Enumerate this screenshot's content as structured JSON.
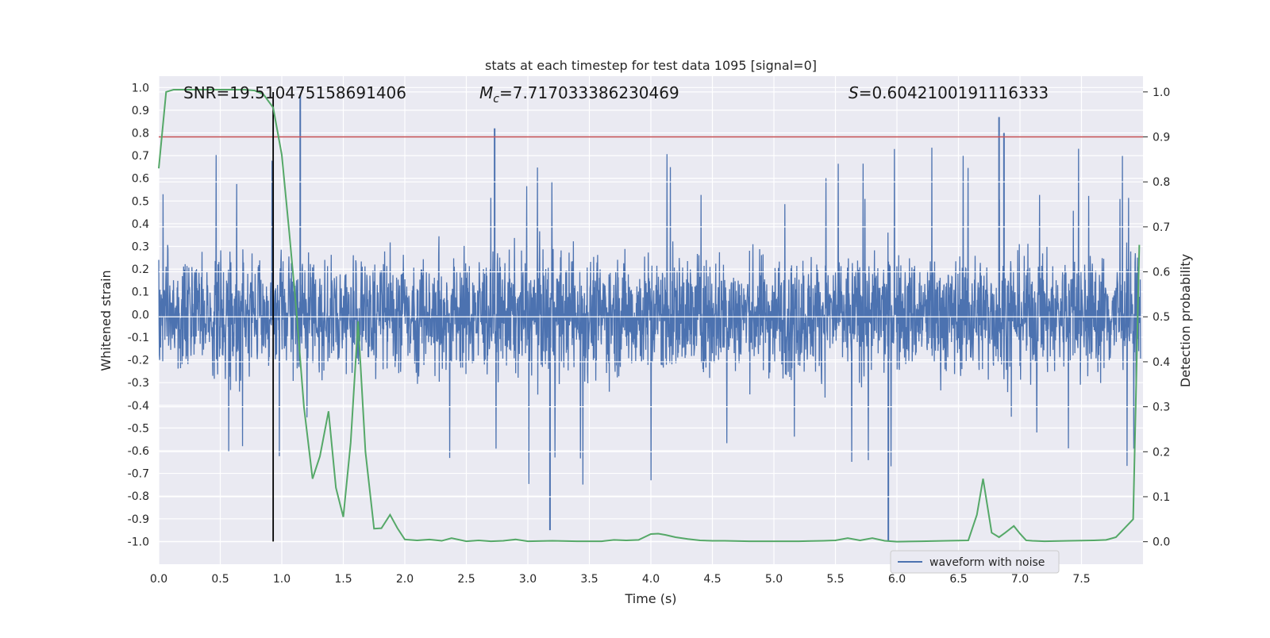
{
  "chart_data": {
    "type": "line",
    "title": "stats at each timestep for test data 1095 [signal=0]",
    "xlabel": "Time (s)",
    "ylabel": "Whitened strain",
    "ylabel_right": "Detection probability",
    "xlim": [
      0.0,
      8.0
    ],
    "ylim": [
      -1.1,
      1.05
    ],
    "ylim_right": [
      -0.05,
      1.035
    ],
    "x_ticks": [
      "0.0",
      "0.5",
      "1.0",
      "1.5",
      "2.0",
      "2.5",
      "3.0",
      "3.5",
      "4.0",
      "4.5",
      "5.0",
      "5.5",
      "6.0",
      "6.5",
      "7.0",
      "7.5"
    ],
    "y_ticks": [
      "1.0",
      "0.9",
      "0.8",
      "0.7",
      "0.6",
      "0.5",
      "0.4",
      "0.3",
      "0.2",
      "0.1",
      "0.0",
      "-0.1",
      "-0.2",
      "-0.3",
      "-0.4",
      "-0.5",
      "-0.6",
      "-0.7",
      "-0.8",
      "-0.9",
      "-1.0"
    ],
    "y_right_ticks": [
      "1.0",
      "0.9",
      "0.8",
      "0.7",
      "0.6",
      "0.5",
      "0.4",
      "0.3",
      "0.2",
      "0.1",
      "0.0"
    ],
    "grid": true,
    "legend_position": "bottom-right",
    "annotations": {
      "snr": "SNR=19.510475158691406",
      "mc_symbol": "M",
      "mc_subscript": "c",
      "mc_value": "=7.717033386230469",
      "s_symbol": "S",
      "s_value": "=0.6042100191116333"
    },
    "threshold": {
      "axis": "right",
      "value": 0.9,
      "color": "#c44e52"
    },
    "marker_line": {
      "x": 0.93,
      "y_from": -1.0,
      "y_to": 0.98,
      "color": "#000000"
    },
    "series": [
      {
        "name": "waveform with noise",
        "axis": "left",
        "color": "#4c72b0",
        "description": "dense noisy whitened strain samples spanning 0 to 8 s, mostly within about ±0.4 with spikes up to ~0.97 and down to ~-1.0",
        "envelope_typical": [
          -0.42,
          0.45
        ],
        "notable_spikes": [
          {
            "x": 1.15,
            "y": 0.97
          },
          {
            "x": 2.73,
            "y": 0.82
          },
          {
            "x": 3.18,
            "y": -0.95
          },
          {
            "x": 5.93,
            "y": -1.0
          },
          {
            "x": 6.83,
            "y": 0.87
          },
          {
            "x": 6.87,
            "y": 0.8
          }
        ]
      },
      {
        "axis": "right",
        "color": "#55a868",
        "x": [
          0.0,
          0.06,
          0.12,
          0.2,
          0.3,
          0.4,
          0.5,
          0.6,
          0.7,
          0.78,
          0.85,
          0.93,
          1.0,
          1.06,
          1.12,
          1.18,
          1.25,
          1.31,
          1.38,
          1.44,
          1.5,
          1.56,
          1.62,
          1.68,
          1.75,
          1.81,
          1.88,
          1.94,
          2.0,
          2.1,
          2.2,
          2.3,
          2.38,
          2.5,
          2.6,
          2.7,
          2.8,
          2.9,
          3.0,
          3.2,
          3.4,
          3.6,
          3.7,
          3.8,
          3.9,
          4.0,
          4.06,
          4.12,
          4.2,
          4.3,
          4.4,
          4.5,
          4.6,
          4.8,
          5.0,
          5.2,
          5.4,
          5.5,
          5.6,
          5.7,
          5.8,
          5.9,
          6.0,
          6.2,
          6.4,
          6.58,
          6.65,
          6.7,
          6.77,
          6.83,
          6.88,
          6.95,
          7.0,
          7.05,
          7.1,
          7.2,
          7.4,
          7.6,
          7.7,
          7.78,
          7.85,
          7.92,
          7.97
        ],
        "values": [
          0.83,
          1.0,
          1.005,
          1.005,
          1.005,
          1.005,
          1.005,
          1.005,
          1.005,
          1.003,
          0.995,
          0.965,
          0.86,
          0.69,
          0.51,
          0.3,
          0.14,
          0.19,
          0.29,
          0.12,
          0.055,
          0.22,
          0.49,
          0.2,
          0.029,
          0.03,
          0.06,
          0.03,
          0.005,
          0.003,
          0.005,
          0.002,
          0.008,
          0.001,
          0.003,
          0.001,
          0.002,
          0.005,
          0.001,
          0.002,
          0.001,
          0.001,
          0.004,
          0.003,
          0.004,
          0.017,
          0.018,
          0.015,
          0.01,
          0.006,
          0.003,
          0.002,
          0.002,
          0.001,
          0.001,
          0.001,
          0.002,
          0.003,
          0.008,
          0.003,
          0.008,
          0.002,
          0.0,
          0.001,
          0.002,
          0.003,
          0.06,
          0.14,
          0.02,
          0.01,
          0.02,
          0.035,
          0.018,
          0.003,
          0.002,
          0.001,
          0.002,
          0.003,
          0.004,
          0.01,
          0.03,
          0.05,
          0.66
        ]
      }
    ]
  }
}
